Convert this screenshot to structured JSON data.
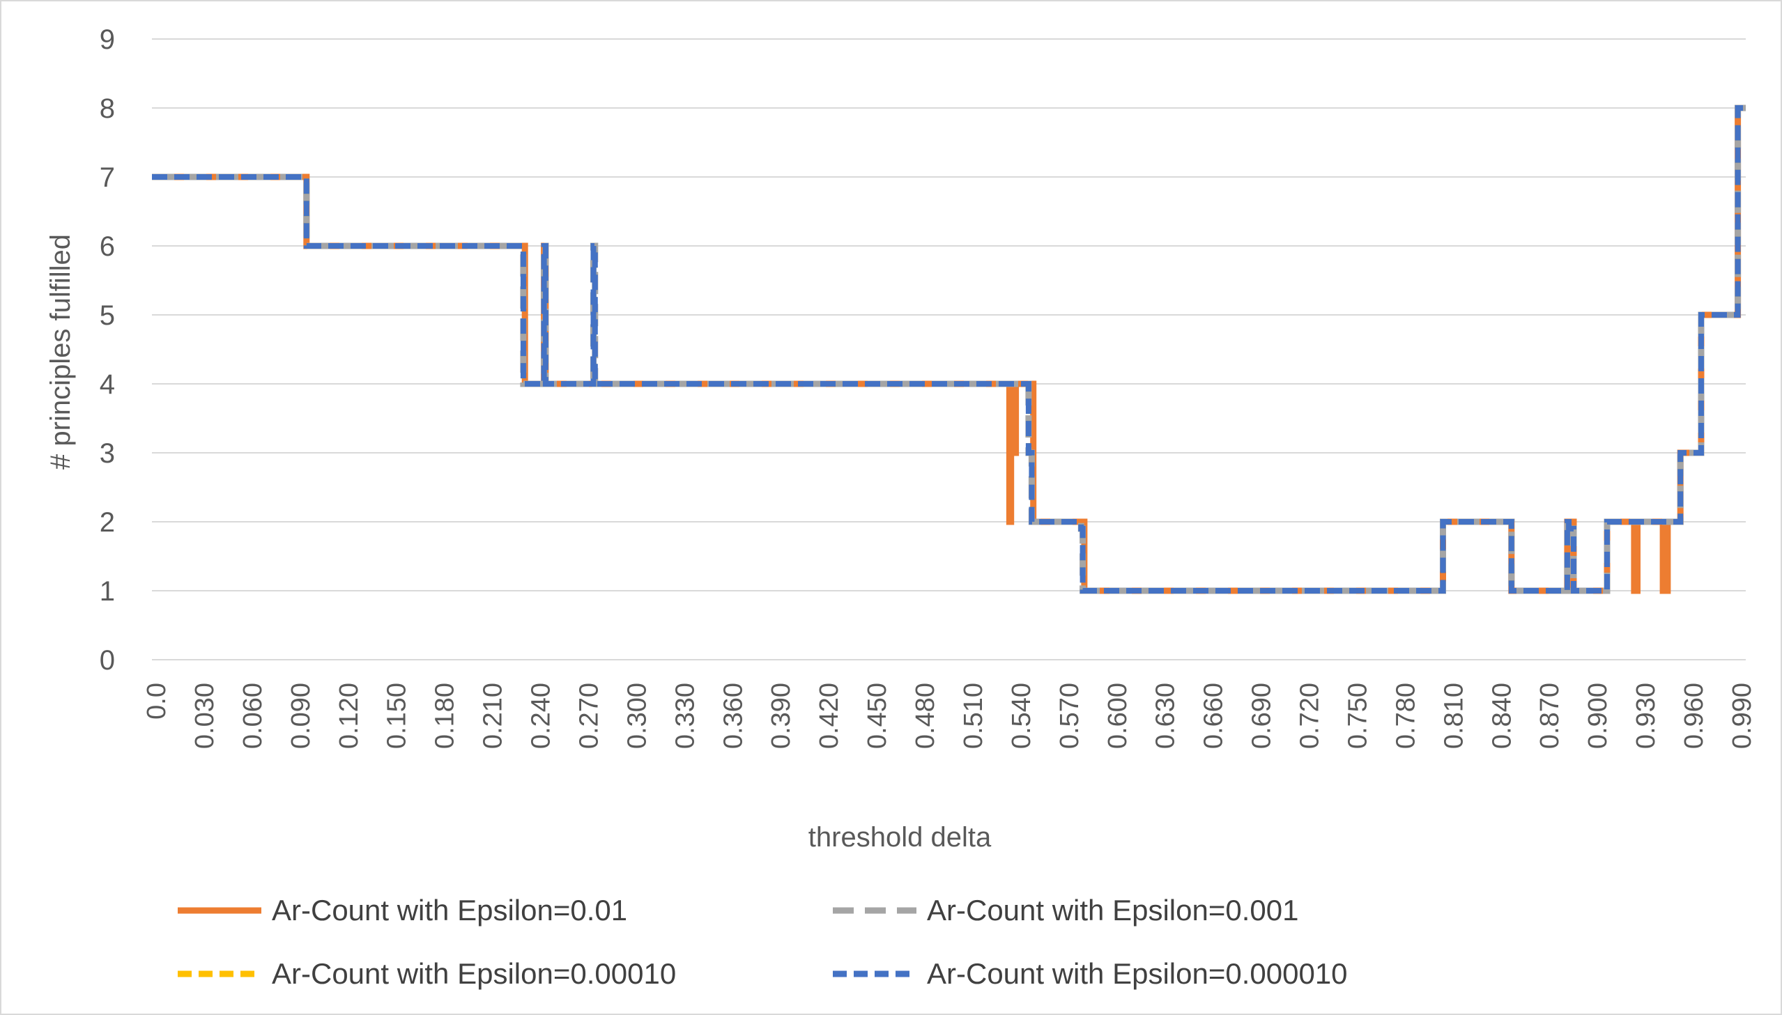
{
  "chart_data": {
    "type": "line",
    "xlabel": "threshold delta",
    "ylabel": "# principles fulfilled",
    "xlim": [
      0,
      1.0
    ],
    "ylim": [
      0,
      9
    ],
    "yticks": [
      0,
      1,
      2,
      3,
      4,
      5,
      6,
      7,
      8,
      9
    ],
    "xticks": [
      "0.0",
      "0.030",
      "0.060",
      "0.090",
      "0.120",
      "0.150",
      "0.180",
      "0.210",
      "0.240",
      "0.270",
      "0.300",
      "0.330",
      "0.360",
      "0.390",
      "0.420",
      "0.450",
      "0.480",
      "0.510",
      "0.540",
      "0.570",
      "0.600",
      "0.630",
      "0.660",
      "0.690",
      "0.720",
      "0.750",
      "0.780",
      "0.810",
      "0.840",
      "0.870",
      "0.900",
      "0.930",
      "0.960",
      "0.990"
    ],
    "grid": "horizontal",
    "legend_position": "bottom",
    "series": [
      {
        "name": "Ar-Count with Epsilon=0.01",
        "color": "#ED7D31",
        "style": "solid",
        "x": [
          0.0,
          0.097,
          0.097,
          0.234,
          0.234,
          0.246,
          0.246,
          0.247,
          0.247,
          0.538,
          0.538,
          0.539,
          0.539,
          0.541,
          0.541,
          0.542,
          0.542,
          0.553,
          0.553,
          0.585,
          0.585,
          0.81,
          0.81,
          0.853,
          0.853,
          0.888,
          0.888,
          0.892,
          0.892,
          0.913,
          0.913,
          0.93,
          0.93,
          0.932,
          0.932,
          0.948,
          0.948,
          0.951,
          0.951,
          0.959,
          0.959,
          0.972,
          0.972,
          0.995,
          0.995,
          1.0
        ],
        "y": [
          7,
          7,
          6,
          6,
          4,
          4,
          6,
          6,
          4,
          4,
          2,
          2,
          4,
          4,
          3,
          3,
          4,
          4,
          2,
          2,
          1,
          1,
          2,
          2,
          1,
          1,
          2,
          2,
          1,
          1,
          2,
          2,
          1,
          1,
          2,
          2,
          1,
          1,
          2,
          2,
          3,
          3,
          5,
          5,
          8,
          8
        ]
      },
      {
        "name": "Ar-Count with Epsilon=0.001",
        "color": "#A5A5A5",
        "style": "long-dash",
        "x": [
          0.0,
          0.097,
          0.097,
          0.233,
          0.233,
          0.246,
          0.246,
          0.247,
          0.247,
          0.277,
          0.277,
          0.278,
          0.278,
          0.55,
          0.55,
          0.552,
          0.552,
          0.583,
          0.583,
          0.584,
          0.584,
          0.81,
          0.81,
          0.853,
          0.853,
          0.888,
          0.888,
          0.889,
          0.889,
          0.892,
          0.892,
          0.913,
          0.913,
          0.959,
          0.959,
          0.972,
          0.972,
          0.995,
          0.995,
          1.0
        ],
        "y": [
          7,
          7,
          6,
          6,
          4,
          4,
          6,
          6,
          4,
          4,
          6,
          6,
          4,
          4,
          3,
          3,
          2,
          2,
          1.9,
          1.9,
          1,
          1,
          2,
          2,
          1,
          1,
          2,
          2,
          1.9,
          1.9,
          1,
          1,
          2,
          2,
          3,
          3,
          5,
          5,
          8,
          8
        ]
      },
      {
        "name": "Ar-Count with Epsilon=0.00010",
        "color": "#FFC000",
        "style": "dash",
        "x": [
          0.0,
          0.097,
          0.097,
          0.233,
          0.233,
          0.246,
          0.246,
          0.247,
          0.247,
          0.277,
          0.277,
          0.278,
          0.278,
          0.55,
          0.55,
          0.552,
          0.552,
          0.583,
          0.583,
          0.584,
          0.584,
          0.81,
          0.81,
          0.853,
          0.853,
          0.888,
          0.888,
          0.889,
          0.889,
          0.892,
          0.892,
          0.913,
          0.913,
          0.959,
          0.959,
          0.972,
          0.972,
          0.995,
          0.995,
          1.0
        ],
        "y": [
          7,
          7,
          6,
          6,
          4,
          4,
          6,
          6,
          4,
          4,
          6,
          6,
          4,
          4,
          3,
          3,
          2,
          2,
          1.9,
          1.9,
          1,
          1,
          2,
          2,
          1,
          1,
          2,
          2,
          1.9,
          1.9,
          1,
          1,
          2,
          2,
          3,
          3,
          5,
          5,
          8,
          8
        ]
      },
      {
        "name": "Ar-Count with Epsilon=0.000010",
        "color": "#4472C4",
        "style": "dash",
        "x": [
          0.0,
          0.097,
          0.097,
          0.233,
          0.233,
          0.246,
          0.246,
          0.247,
          0.247,
          0.277,
          0.277,
          0.278,
          0.278,
          0.55,
          0.55,
          0.552,
          0.552,
          0.583,
          0.583,
          0.584,
          0.584,
          0.81,
          0.81,
          0.853,
          0.853,
          0.888,
          0.888,
          0.889,
          0.889,
          0.892,
          0.892,
          0.913,
          0.913,
          0.959,
          0.959,
          0.972,
          0.972,
          0.995,
          0.995,
          1.0
        ],
        "y": [
          7,
          7,
          6,
          6,
          4,
          4,
          6,
          6,
          4,
          4,
          6,
          6,
          4,
          4,
          3,
          3,
          2,
          2,
          1.9,
          1.9,
          1,
          1,
          2,
          2,
          1,
          1,
          2,
          2,
          1.9,
          1.9,
          1,
          1,
          2,
          2,
          3,
          3,
          5,
          5,
          8,
          8
        ]
      }
    ]
  }
}
